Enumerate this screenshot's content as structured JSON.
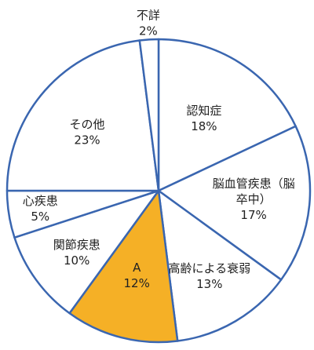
{
  "chart_data": {
    "type": "pie",
    "start": "top",
    "direction": "clockwise",
    "slices": [
      {
        "name": "認知症",
        "value": 18,
        "value_label": "18%",
        "fill": "#ffffff"
      },
      {
        "name": "脳血管疾患（脳卒中）",
        "name_lines": [
          "脳血管疾患（脳",
          "卒中）"
        ],
        "value": 17,
        "value_label": "17%",
        "fill": "#ffffff"
      },
      {
        "name": "高齢による衰弱",
        "value": 13,
        "value_label": "13%",
        "fill": "#ffffff"
      },
      {
        "name": "A",
        "value": 12,
        "value_label": "12%",
        "fill": "#f5b026"
      },
      {
        "name": "関節疾患",
        "value": 10,
        "value_label": "10%",
        "fill": "#ffffff"
      },
      {
        "name": "心疾患",
        "value": 5,
        "value_label": "5%",
        "fill": "#ffffff"
      },
      {
        "name": "その他",
        "value": 23,
        "value_label": "23%",
        "fill": "#ffffff"
      },
      {
        "name": "不詳",
        "value": 2,
        "value_label": "2%",
        "fill": "#ffffff"
      }
    ],
    "border_color": "#3a66b0"
  }
}
